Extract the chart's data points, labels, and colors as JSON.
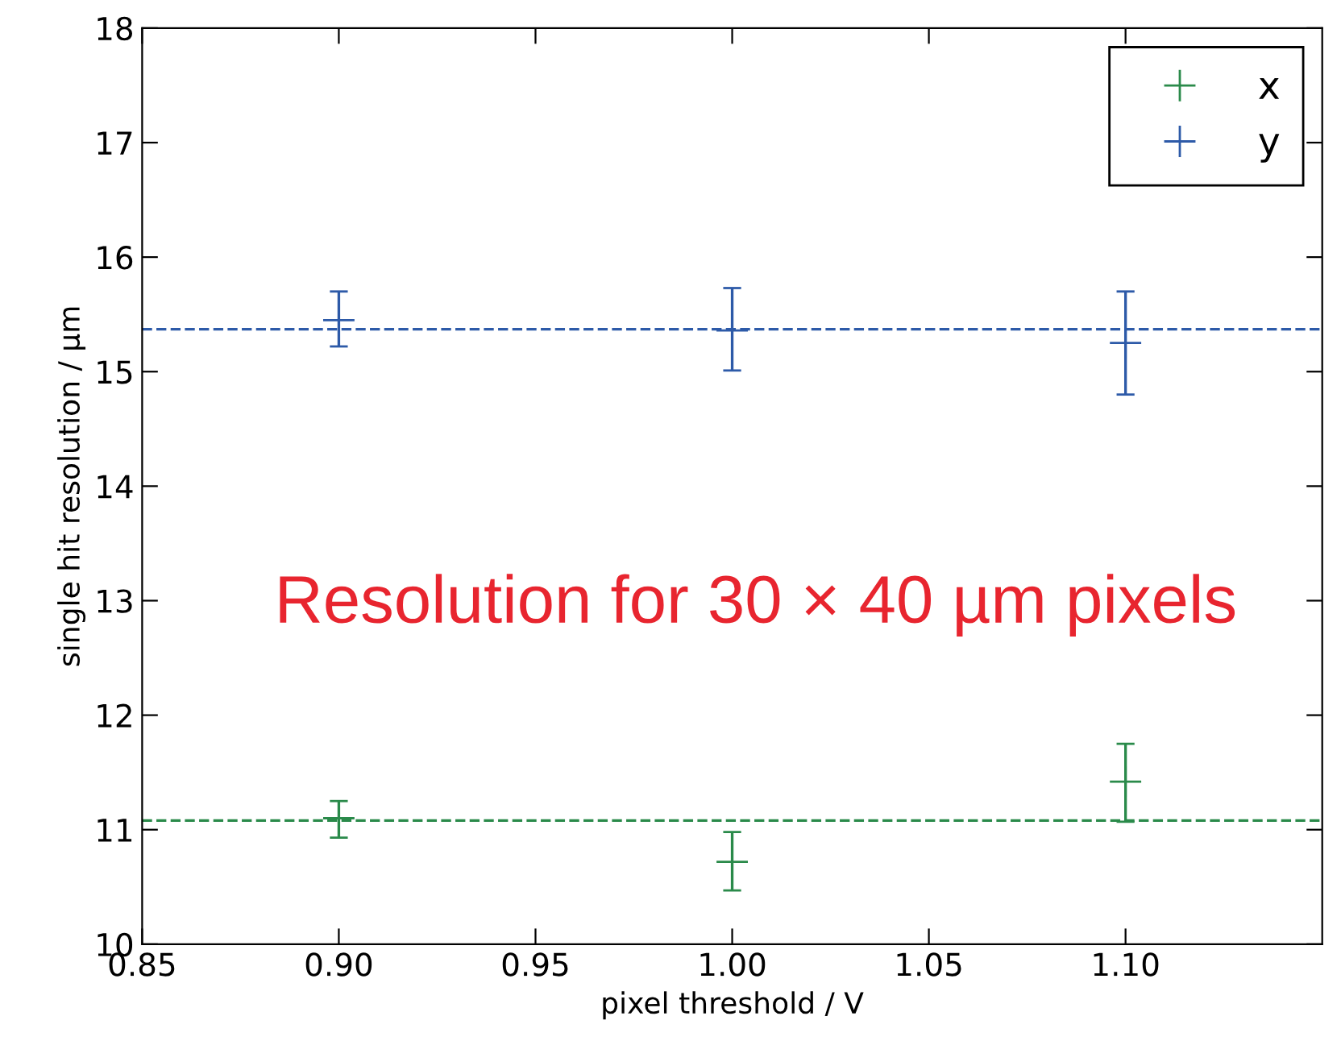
{
  "chart_data": {
    "type": "scatter",
    "xlabel": "pixel threshold / V",
    "ylabel": "single hit resolution / µm",
    "x": [
      0.9,
      1.0,
      1.1
    ],
    "series": [
      {
        "name": "x",
        "color": "#2a8a4a",
        "values": [
          11.1,
          10.72,
          11.42
        ],
        "errors": [
          [
            10.93,
            11.25
          ],
          [
            10.47,
            10.98
          ],
          [
            11.07,
            11.75
          ]
        ]
      },
      {
        "name": "y",
        "color": "#2d5aa8",
        "values": [
          15.45,
          15.36,
          15.25
        ],
        "errors": [
          [
            15.22,
            15.7
          ],
          [
            15.01,
            15.73
          ],
          [
            14.8,
            15.7
          ]
        ]
      }
    ],
    "ref_lines": [
      {
        "axis": "y",
        "value": 11.08,
        "color": "#2a8a4a",
        "line_style": "dashed"
      },
      {
        "axis": "y",
        "value": 15.37,
        "color": "#2d5aa8",
        "line_style": "dashed"
      }
    ],
    "annotations": [
      "Resolution for 30 × 40 µm pixels"
    ],
    "xlim": [
      0.85,
      1.15
    ],
    "xticks": [
      {
        "value": 0.85,
        "label": "0.85"
      },
      {
        "value": 0.9,
        "label": "0.90"
      },
      {
        "value": 0.95,
        "label": "0.95"
      },
      {
        "value": 1.0,
        "label": "1.00"
      },
      {
        "value": 1.05,
        "label": "1.05"
      },
      {
        "value": 1.1,
        "label": "1.10"
      }
    ],
    "ylim": [
      10,
      18
    ],
    "yticks": [
      10,
      11,
      12,
      13,
      14,
      15,
      16,
      17,
      18
    ],
    "marker": "cross",
    "grid": false,
    "legend": "top right"
  }
}
